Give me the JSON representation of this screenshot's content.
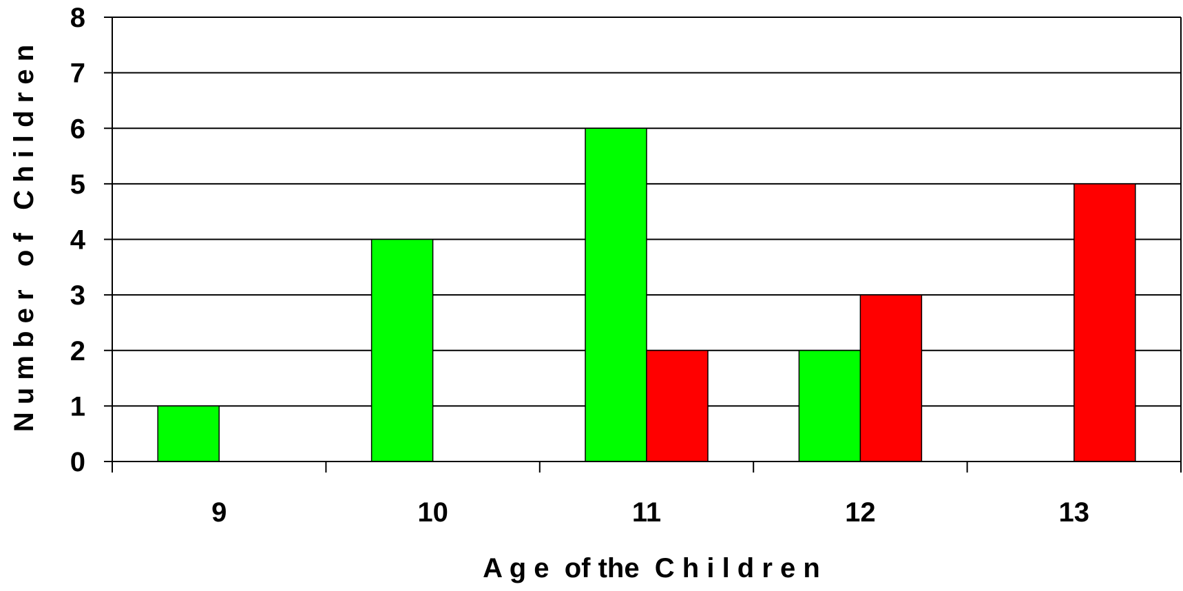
{
  "chart_data": {
    "type": "bar",
    "categories": [
      "9",
      "10",
      "11",
      "12",
      "13"
    ],
    "series": [
      {
        "values": [
          1,
          4,
          6,
          2,
          0
        ],
        "color": "#00ff00"
      },
      {
        "values": [
          0,
          0,
          2,
          3,
          5
        ],
        "color": "#ff0000"
      }
    ],
    "xlabel": "A g e  of the  C h i l d r e n",
    "ylabel": "N u m b e r   o f   C h i l d r e n",
    "ylim": [
      0,
      8
    ],
    "yticks": [
      "0",
      "1",
      "2",
      "3",
      "4",
      "5",
      "6",
      "7",
      "8"
    ],
    "grid": true,
    "legend": "none"
  }
}
